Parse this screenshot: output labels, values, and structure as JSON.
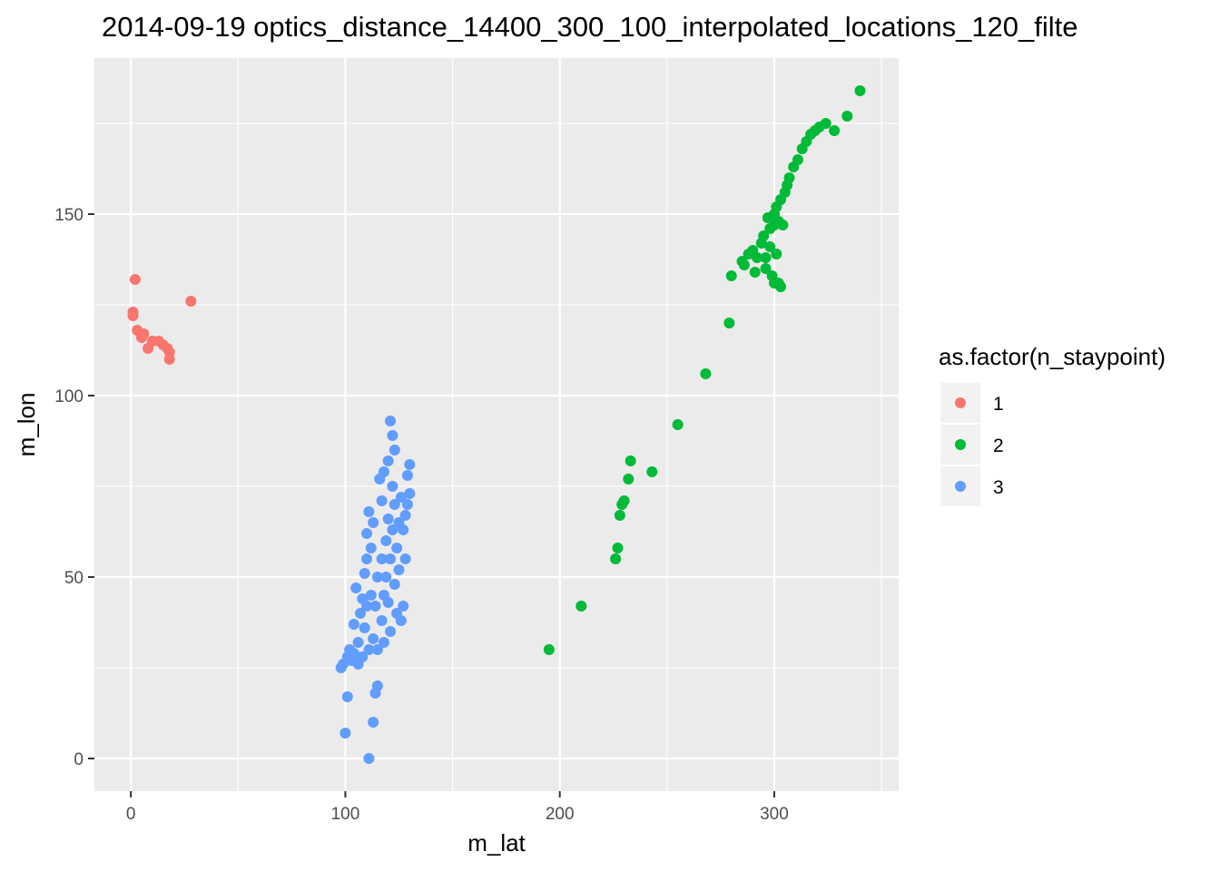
{
  "chart_data": {
    "type": "scatter",
    "title": "2014-09-19 optics_distance_14400_300_100_interpolated_locations_120_filte",
    "xlabel": "m_lat",
    "ylabel": "m_lon",
    "xlim": [
      -17,
      358
    ],
    "ylim": [
      -9,
      193
    ],
    "x_ticks": [
      0,
      100,
      200,
      300
    ],
    "x_tick_labels": [
      "0",
      "100",
      "200",
      "300"
    ],
    "y_ticks": [
      0,
      50,
      100,
      150
    ],
    "y_tick_labels": [
      "0",
      "50",
      "100",
      "150"
    ],
    "grid": true,
    "legend": {
      "title": "as.factor(n_staypoint)",
      "position": "right"
    },
    "series": [
      {
        "name": "1",
        "color": "#F8766D",
        "points": [
          [
            1,
            123
          ],
          [
            1,
            122
          ],
          [
            2,
            132
          ],
          [
            3,
            118
          ],
          [
            5,
            116
          ],
          [
            6,
            117
          ],
          [
            8,
            113
          ],
          [
            10,
            115
          ],
          [
            13,
            115
          ],
          [
            15,
            114
          ],
          [
            17,
            113
          ],
          [
            18,
            112
          ],
          [
            18,
            110
          ],
          [
            28,
            126
          ]
        ]
      },
      {
        "name": "2",
        "color": "#00BA38",
        "points": [
          [
            195,
            30
          ],
          [
            210,
            42
          ],
          [
            226,
            55
          ],
          [
            227,
            58
          ],
          [
            228,
            67
          ],
          [
            229,
            70
          ],
          [
            230,
            71
          ],
          [
            232,
            77
          ],
          [
            233,
            82
          ],
          [
            243,
            79
          ],
          [
            255,
            92
          ],
          [
            268,
            106
          ],
          [
            279,
            120
          ],
          [
            280,
            133
          ],
          [
            285,
            137
          ],
          [
            286,
            136
          ],
          [
            288,
            139
          ],
          [
            290,
            140
          ],
          [
            291,
            134
          ],
          [
            292,
            138
          ],
          [
            294,
            142
          ],
          [
            295,
            144
          ],
          [
            296,
            138
          ],
          [
            296,
            135
          ],
          [
            297,
            149
          ],
          [
            298,
            146
          ],
          [
            298,
            141
          ],
          [
            299,
            133
          ],
          [
            300,
            150
          ],
          [
            300,
            147
          ],
          [
            300,
            131
          ],
          [
            301,
            139
          ],
          [
            301,
            152
          ],
          [
            302,
            148
          ],
          [
            302,
            131
          ],
          [
            303,
            154
          ],
          [
            303,
            130
          ],
          [
            304,
            147
          ],
          [
            305,
            156
          ],
          [
            306,
            158
          ],
          [
            307,
            160
          ],
          [
            309,
            163
          ],
          [
            311,
            165
          ],
          [
            313,
            168
          ],
          [
            315,
            170
          ],
          [
            317,
            172
          ],
          [
            319,
            173
          ],
          [
            321,
            174
          ],
          [
            324,
            175
          ],
          [
            328,
            173
          ],
          [
            334,
            177
          ],
          [
            340,
            184
          ]
        ]
      },
      {
        "name": "3",
        "color": "#619CFF",
        "points": [
          [
            98,
            25
          ],
          [
            99,
            26
          ],
          [
            100,
            7
          ],
          [
            101,
            28
          ],
          [
            101,
            17
          ],
          [
            102,
            30
          ],
          [
            103,
            27
          ],
          [
            104,
            29
          ],
          [
            104,
            37
          ],
          [
            105,
            47
          ],
          [
            106,
            26
          ],
          [
            106,
            32
          ],
          [
            107,
            40
          ],
          [
            108,
            28
          ],
          [
            108,
            44
          ],
          [
            109,
            51
          ],
          [
            109,
            36
          ],
          [
            110,
            55
          ],
          [
            110,
            42
          ],
          [
            110,
            62
          ],
          [
            111,
            0
          ],
          [
            111,
            68
          ],
          [
            111,
            30
          ],
          [
            112,
            58
          ],
          [
            112,
            45
          ],
          [
            113,
            33
          ],
          [
            113,
            10
          ],
          [
            113,
            65
          ],
          [
            114,
            18
          ],
          [
            114,
            42
          ],
          [
            115,
            20
          ],
          [
            115,
            30
          ],
          [
            115,
            50
          ],
          [
            116,
            77
          ],
          [
            117,
            55
          ],
          [
            117,
            38
          ],
          [
            117,
            71
          ],
          [
            118,
            45
          ],
          [
            118,
            79
          ],
          [
            118,
            32
          ],
          [
            119,
            60
          ],
          [
            119,
            50
          ],
          [
            120,
            82
          ],
          [
            120,
            43
          ],
          [
            120,
            66
          ],
          [
            121,
            93
          ],
          [
            121,
            55
          ],
          [
            121,
            35
          ],
          [
            122,
            89
          ],
          [
            122,
            63
          ],
          [
            122,
            75
          ],
          [
            123,
            85
          ],
          [
            123,
            48
          ],
          [
            123,
            70
          ],
          [
            124,
            58
          ],
          [
            124,
            40
          ],
          [
            125,
            65
          ],
          [
            125,
            52
          ],
          [
            126,
            72
          ],
          [
            126,
            38
          ],
          [
            127,
            42
          ],
          [
            127,
            63
          ],
          [
            128,
            55
          ],
          [
            128,
            67
          ],
          [
            129,
            70
          ],
          [
            129,
            78
          ],
          [
            130,
            81
          ],
          [
            130,
            73
          ]
        ]
      }
    ]
  }
}
